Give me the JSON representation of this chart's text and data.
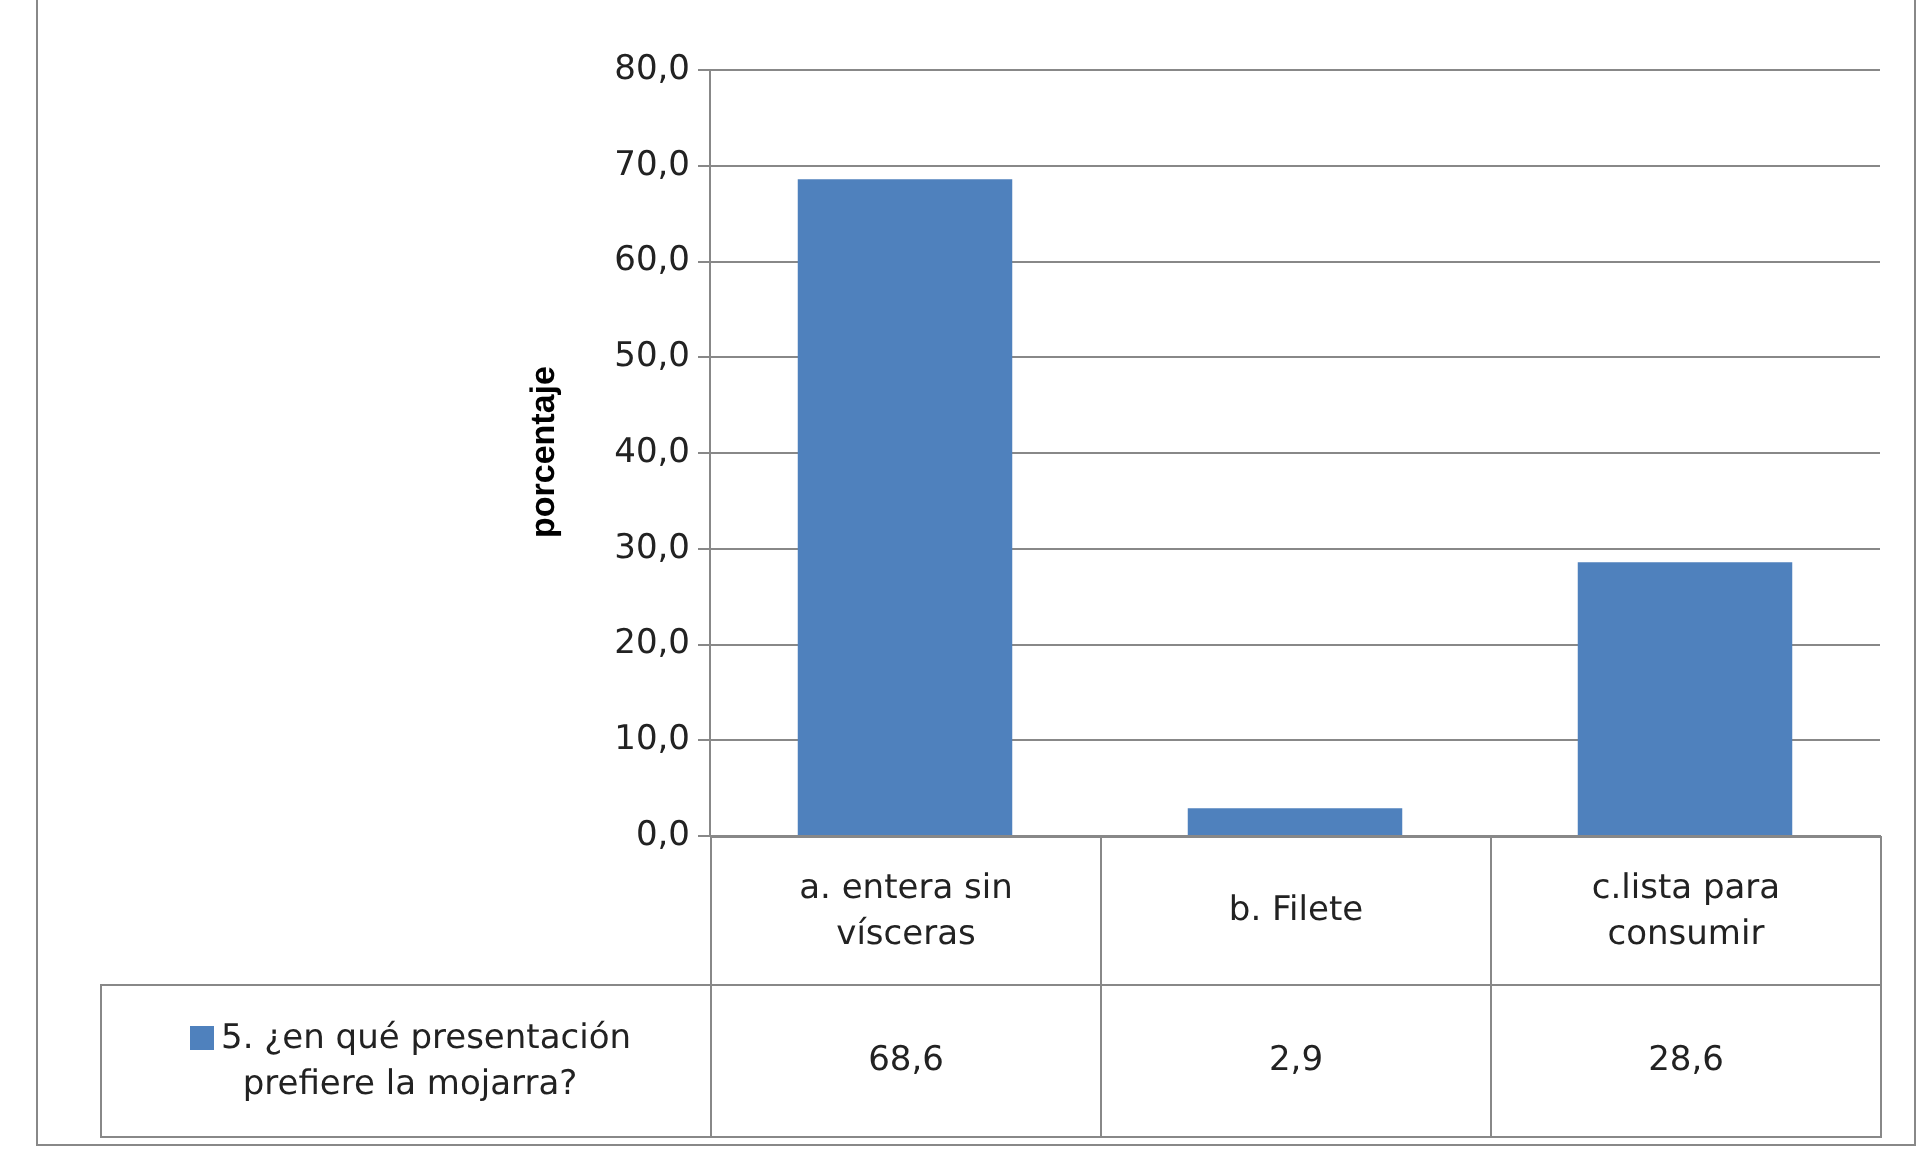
{
  "chart_data": {
    "type": "bar",
    "ylabel": "porcentaje",
    "categories": [
      "a. entera sin vísceras",
      "b. Filete",
      "c.lista para consumir"
    ],
    "series": [
      {
        "name": "5. ¿en qué presentación prefiere la mojarra?",
        "color": "#4f81bd",
        "values": [
          68.6,
          2.9,
          28.6
        ],
        "value_labels": [
          "68,6",
          "2,9",
          "28,6"
        ]
      }
    ],
    "ylim": [
      0,
      80
    ],
    "yticks": [
      {
        "value": 0,
        "label": "0,0"
      },
      {
        "value": 10,
        "label": "10,0"
      },
      {
        "value": 20,
        "label": "20,0"
      },
      {
        "value": 30,
        "label": "30,0"
      },
      {
        "value": 40,
        "label": "40,0"
      },
      {
        "value": 50,
        "label": "50,0"
      },
      {
        "value": 60,
        "label": "60,0"
      },
      {
        "value": 70,
        "label": "70,0"
      },
      {
        "value": 80,
        "label": "80,0"
      }
    ],
    "grid": "y",
    "legend": "bottom left"
  }
}
